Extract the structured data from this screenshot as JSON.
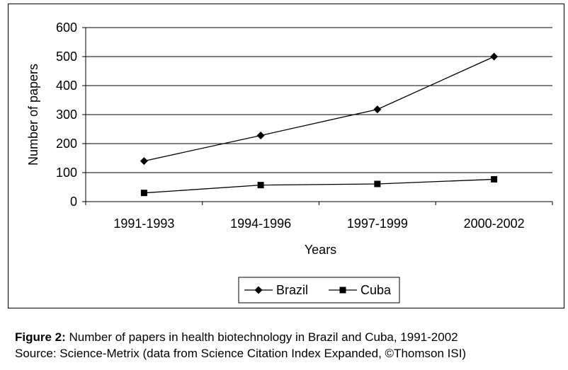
{
  "chart_data": {
    "type": "line",
    "categories": [
      "1991-1993",
      "1994-1996",
      "1997-1999",
      "2000-2002"
    ],
    "series": [
      {
        "name": "Brazil",
        "values": [
          140,
          228,
          318,
          500
        ],
        "marker": "diamond",
        "color": "#000000"
      },
      {
        "name": "Cuba",
        "values": [
          30,
          57,
          61,
          77
        ],
        "marker": "square",
        "color": "#000000"
      }
    ],
    "xlabel": "Years",
    "ylabel": "Number of papers",
    "ylim": [
      0,
      600
    ],
    "yticks": [
      0,
      100,
      200,
      300,
      400,
      500,
      600
    ],
    "grid": true,
    "legend": "bottom"
  },
  "caption": {
    "figure_label": "Figure 2:",
    "figure_text": " Number of papers in health biotechnology in Brazil and Cuba, 1991-2002",
    "source": "Source: Science-Metrix (data from Science Citation Index Expanded, ©Thomson ISI)"
  }
}
